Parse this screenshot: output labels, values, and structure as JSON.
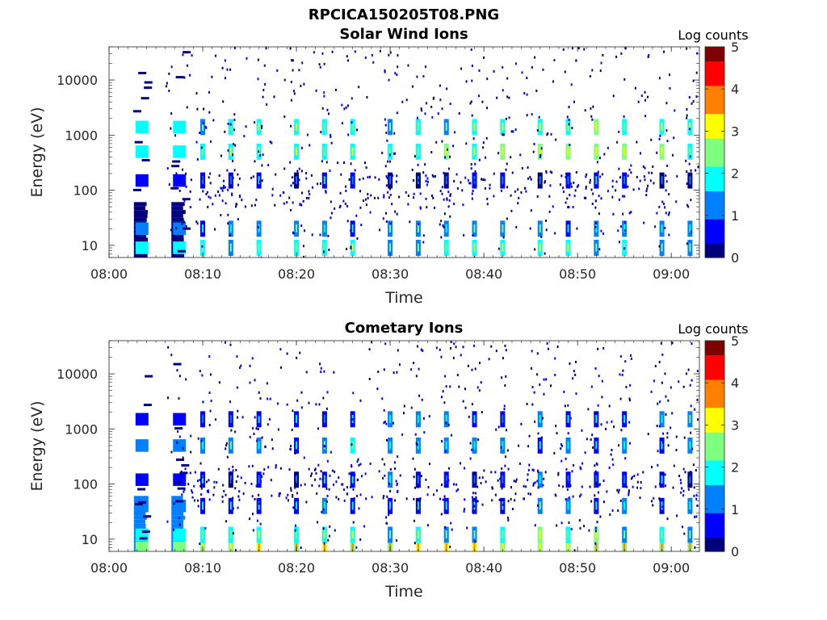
{
  "figure": {
    "title": "RPCICA150205T08.PNG"
  },
  "colormap": [
    "#00007f",
    "#0000ff",
    "#007fff",
    "#00ffff",
    "#7fff7f",
    "#ffff00",
    "#ff7f00",
    "#ff0000",
    "#7f0000"
  ],
  "chart_data": [
    {
      "type": "heatmap",
      "title": "Solar Wind Ions",
      "xlabel": "Time",
      "ylabel": "Energy (eV)",
      "xlim": [
        "08:00",
        "09:03"
      ],
      "ylim": [
        6,
        40000
      ],
      "yscale": "log",
      "xticks": [
        "08:00",
        "08:10",
        "08:20",
        "08:30",
        "08:40",
        "08:50",
        "09:00"
      ],
      "yticks": [
        10,
        100,
        1000,
        10000
      ],
      "ytick_labels": [
        "10",
        "100",
        "1000",
        "10000"
      ],
      "colorbar": {
        "label": "Log counts",
        "range": [
          0,
          5
        ],
        "ticks": [
          "0",
          "1",
          "2",
          "3",
          "4",
          "5"
        ]
      },
      "instrument_on": "08:03",
      "scan_times": [
        "08:10",
        "08:13",
        "08:16",
        "08:20",
        "08:23",
        "08:26",
        "08:30",
        "08:33",
        "08:36",
        "08:39",
        "08:42",
        "08:46",
        "08:49",
        "08:52",
        "08:55",
        "08:59",
        "09:02"
      ],
      "bands_energy_eV": [
        {
          "energy": 9,
          "level": 1.6
        },
        {
          "energy": 20,
          "level": 1.0
        },
        {
          "energy": 150,
          "level": 0.4
        },
        {
          "energy": 500,
          "level": 2.0
        },
        {
          "energy": 1400,
          "level": 1.9
        }
      ]
    },
    {
      "type": "heatmap",
      "title": "Cometary Ions",
      "xlabel": "Time",
      "ylabel": "Energy (eV)",
      "xlim": [
        "08:00",
        "09:03"
      ],
      "ylim": [
        6,
        40000
      ],
      "yscale": "log",
      "xticks": [
        "08:00",
        "08:10",
        "08:20",
        "08:30",
        "08:40",
        "08:50",
        "09:00"
      ],
      "yticks": [
        10,
        100,
        1000,
        10000
      ],
      "ytick_labels": [
        "10",
        "100",
        "1000",
        "10000"
      ],
      "colorbar": {
        "label": "Log counts",
        "range": [
          0,
          5
        ],
        "ticks": [
          "0",
          "1",
          "2",
          "3",
          "4",
          "5"
        ]
      },
      "instrument_on": "08:03",
      "scan_times": [
        "08:10",
        "08:13",
        "08:16",
        "08:20",
        "08:23",
        "08:26",
        "08:30",
        "08:33",
        "08:36",
        "08:39",
        "08:42",
        "08:46",
        "08:49",
        "08:52",
        "08:55",
        "08:59",
        "09:02"
      ],
      "bands_energy_eV": [
        {
          "energy": 7,
          "level": 2.6
        },
        {
          "energy": 12,
          "level": 1.8
        },
        {
          "energy": 40,
          "level": 1.0
        },
        {
          "energy": 120,
          "level": 0.6
        },
        {
          "energy": 500,
          "level": 1.2
        },
        {
          "energy": 1500,
          "level": 0.8
        }
      ]
    }
  ]
}
